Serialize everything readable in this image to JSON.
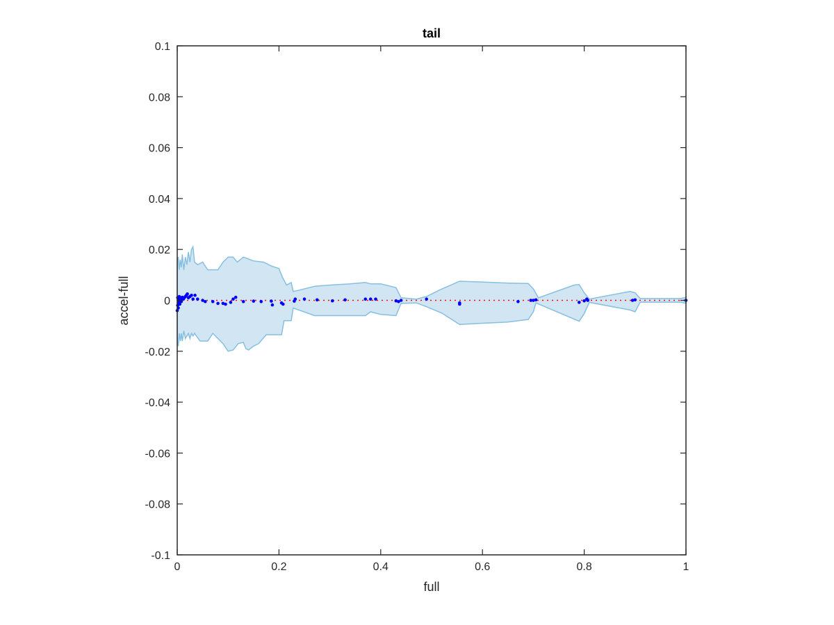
{
  "chart_data": {
    "type": "scatter",
    "title": "tail",
    "xlabel": "full",
    "ylabel": "accel-full",
    "xlim": [
      0,
      1
    ],
    "ylim": [
      -0.1,
      0.1
    ],
    "xticks": [
      0,
      0.2,
      0.4,
      0.6,
      0.8,
      1
    ],
    "xtick_labels": [
      "0",
      "0.2",
      "0.4",
      "0.6",
      "0.8",
      "1"
    ],
    "yticks": [
      0.1,
      0.08,
      0.06,
      0.04,
      0.02,
      0,
      -0.02,
      -0.04,
      -0.06,
      -0.08,
      -0.1
    ],
    "ytick_labels": [
      "0.1",
      "0.08",
      "0.06",
      "0.04",
      "0.02",
      "0",
      "-0.02",
      "-0.04",
      "-0.06",
      "-0.08",
      "-0.1"
    ],
    "grid": false,
    "colors": {
      "points": "#0000ff",
      "band_fill": "#d2e5f3",
      "band_edge": "#86bfe0",
      "reference_line": "#ff0000",
      "axes": "#262626"
    },
    "reference_line": {
      "y": 0,
      "style": "dotted"
    },
    "band_upper": [
      [
        0,
        0.016
      ],
      [
        0.002,
        0.017
      ],
      [
        0.004,
        0.012
      ],
      [
        0.006,
        0.016
      ],
      [
        0.008,
        0.013
      ],
      [
        0.01,
        0.018
      ],
      [
        0.013,
        0.012
      ],
      [
        0.016,
        0.017
      ],
      [
        0.019,
        0.014
      ],
      [
        0.022,
        0.019
      ],
      [
        0.025,
        0.015
      ],
      [
        0.028,
        0.02
      ],
      [
        0.031,
        0.021
      ],
      [
        0.034,
        0.015
      ],
      [
        0.04,
        0.014
      ],
      [
        0.05,
        0.015
      ],
      [
        0.06,
        0.012
      ],
      [
        0.07,
        0.012
      ],
      [
        0.08,
        0.012
      ],
      [
        0.09,
        0.015
      ],
      [
        0.1,
        0.017
      ],
      [
        0.11,
        0.017
      ],
      [
        0.118,
        0.015
      ],
      [
        0.13,
        0.017
      ],
      [
        0.15,
        0.0155
      ],
      [
        0.17,
        0.015
      ],
      [
        0.185,
        0.0135
      ],
      [
        0.2,
        0.0125
      ],
      [
        0.207,
        0.009
      ],
      [
        0.215,
        0.006
      ],
      [
        0.224,
        0.007
      ],
      [
        0.228,
        0.0035
      ],
      [
        0.24,
        0.004
      ],
      [
        0.27,
        0.0055
      ],
      [
        0.3,
        0.006
      ],
      [
        0.34,
        0.0065
      ],
      [
        0.37,
        0.007
      ],
      [
        0.38,
        0.0065
      ],
      [
        0.4,
        0.0065
      ],
      [
        0.43,
        0.005
      ],
      [
        0.44,
        0.001
      ],
      [
        0.47,
        0.0005
      ],
      [
        0.49,
        0.0015
      ],
      [
        0.515,
        0.004
      ],
      [
        0.555,
        0.0075
      ],
      [
        0.6,
        0.0072
      ],
      [
        0.65,
        0.0068
      ],
      [
        0.69,
        0.0066
      ],
      [
        0.7,
        0.0045
      ],
      [
        0.71,
        0.001
      ],
      [
        0.78,
        0.006
      ],
      [
        0.79,
        0.0062
      ],
      [
        0.8,
        0.003
      ],
      [
        0.81,
        0.0005
      ],
      [
        0.89,
        0.0035
      ],
      [
        0.9,
        0.003
      ],
      [
        0.91,
        0.0007
      ],
      [
        0.99,
        0.0007
      ],
      [
        1,
        0.0012
      ]
    ],
    "band_lower": [
      [
        0,
        -0.016
      ],
      [
        0.002,
        -0.018
      ],
      [
        0.004,
        -0.013
      ],
      [
        0.006,
        -0.016
      ],
      [
        0.008,
        -0.013
      ],
      [
        0.01,
        -0.016
      ],
      [
        0.013,
        -0.012
      ],
      [
        0.016,
        -0.015
      ],
      [
        0.019,
        -0.014
      ],
      [
        0.022,
        -0.013
      ],
      [
        0.025,
        -0.015
      ],
      [
        0.028,
        -0.013
      ],
      [
        0.031,
        -0.014
      ],
      [
        0.034,
        -0.013
      ],
      [
        0.045,
        -0.016
      ],
      [
        0.06,
        -0.016
      ],
      [
        0.07,
        -0.013
      ],
      [
        0.08,
        -0.015
      ],
      [
        0.09,
        -0.017
      ],
      [
        0.1,
        -0.02
      ],
      [
        0.11,
        -0.0195
      ],
      [
        0.12,
        -0.017
      ],
      [
        0.13,
        -0.0165
      ],
      [
        0.135,
        -0.019
      ],
      [
        0.14,
        -0.0195
      ],
      [
        0.15,
        -0.018
      ],
      [
        0.16,
        -0.017
      ],
      [
        0.175,
        -0.0135
      ],
      [
        0.205,
        -0.0135
      ],
      [
        0.21,
        -0.008
      ],
      [
        0.224,
        -0.008
      ],
      [
        0.228,
        -0.003
      ],
      [
        0.27,
        -0.006
      ],
      [
        0.35,
        -0.006
      ],
      [
        0.37,
        -0.006
      ],
      [
        0.38,
        -0.0045
      ],
      [
        0.4,
        -0.0055
      ],
      [
        0.43,
        -0.006
      ],
      [
        0.44,
        -0.0012
      ],
      [
        0.47,
        -0.001
      ],
      [
        0.49,
        -0.0025
      ],
      [
        0.52,
        -0.005
      ],
      [
        0.555,
        -0.0095
      ],
      [
        0.6,
        -0.009
      ],
      [
        0.65,
        -0.0085
      ],
      [
        0.69,
        -0.0075
      ],
      [
        0.7,
        -0.0045
      ],
      [
        0.705,
        -0.001
      ],
      [
        0.79,
        -0.0082
      ],
      [
        0.8,
        -0.0052
      ],
      [
        0.81,
        -0.0008
      ],
      [
        0.89,
        -0.0038
      ],
      [
        0.9,
        -0.0045
      ],
      [
        0.91,
        -0.0007
      ],
      [
        0.99,
        -0.0007
      ],
      [
        1,
        -0.0012
      ]
    ],
    "points": [
      [
        0.0,
        -0.004
      ],
      [
        0.001,
        0.001
      ],
      [
        0.001,
        -0.002
      ],
      [
        0.002,
        0.0
      ],
      [
        0.002,
        -0.003
      ],
      [
        0.003,
        0.0005
      ],
      [
        0.003,
        -0.001
      ],
      [
        0.004,
        0.0015
      ],
      [
        0.005,
        -0.0015
      ],
      [
        0.006,
        0.0
      ],
      [
        0.007,
        0.001
      ],
      [
        0.008,
        -0.0005
      ],
      [
        0.009,
        0.0008
      ],
      [
        0.01,
        0.0012
      ],
      [
        0.012,
        0.0005
      ],
      [
        0.014,
        0.001
      ],
      [
        0.016,
        0.0015
      ],
      [
        0.018,
        0.002
      ],
      [
        0.02,
        0.0025
      ],
      [
        0.022,
        0.001
      ],
      [
        0.025,
        0.0015
      ],
      [
        0.028,
        0.002
      ],
      [
        0.031,
        0.0005
      ],
      [
        0.035,
        0.002
      ],
      [
        0.04,
        0.0005
      ],
      [
        0.05,
        0.0
      ],
      [
        0.055,
        -0.0005
      ],
      [
        0.07,
        -0.0005
      ],
      [
        0.08,
        -0.0012
      ],
      [
        0.09,
        -0.0012
      ],
      [
        0.095,
        -0.0015
      ],
      [
        0.105,
        -0.0008
      ],
      [
        0.11,
        0.0005
      ],
      [
        0.115,
        0.0012
      ],
      [
        0.13,
        -0.0005
      ],
      [
        0.15,
        -0.0003
      ],
      [
        0.165,
        -0.0005
      ],
      [
        0.185,
        -0.0003
      ],
      [
        0.187,
        -0.0018
      ],
      [
        0.205,
        -0.001
      ],
      [
        0.208,
        -0.0015
      ],
      [
        0.23,
        -0.0003
      ],
      [
        0.232,
        0.0005
      ],
      [
        0.25,
        0.0005
      ],
      [
        0.275,
        0.0002
      ],
      [
        0.305,
        -0.0002
      ],
      [
        0.33,
        0.0002
      ],
      [
        0.37,
        0.0005
      ],
      [
        0.38,
        0.0005
      ],
      [
        0.39,
        0.0005
      ],
      [
        0.43,
        -0.0002
      ],
      [
        0.435,
        -0.0005
      ],
      [
        0.44,
        0.0
      ],
      [
        0.49,
        0.0005
      ],
      [
        0.555,
        -0.001
      ],
      [
        0.555,
        -0.0015
      ],
      [
        0.67,
        -0.0005
      ],
      [
        0.695,
        0.0
      ],
      [
        0.7,
        0.0
      ],
      [
        0.705,
        0.0002
      ],
      [
        0.79,
        -0.0008
      ],
      [
        0.8,
        -0.0002
      ],
      [
        0.805,
        0.0005
      ],
      [
        0.807,
        0.0
      ],
      [
        0.895,
        0.0
      ],
      [
        0.9,
        0.0002
      ],
      [
        1.0,
        0.0
      ]
    ]
  }
}
